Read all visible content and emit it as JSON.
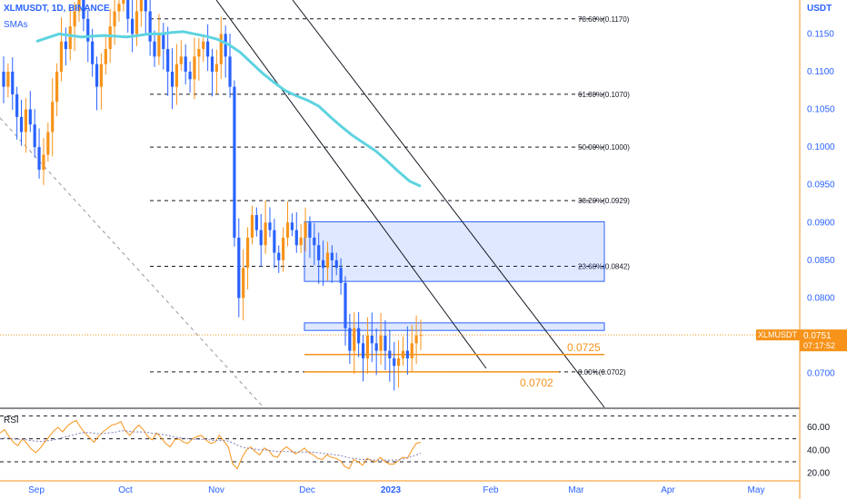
{
  "header": {
    "symbol": "XLMUSDT, 1D, BINANCE",
    "indicator": "SMAs",
    "rsi_label": "RSI",
    "currency": "USDT"
  },
  "colors": {
    "up": "#f7931a",
    "down": "#2962ff",
    "sma": "#5ed3e0",
    "rsi": "#f7931a",
    "rsi_ma": "#7e7bb5",
    "zone_fill": "#2962ff",
    "support": "#f7931a",
    "axis_text": "#2962ff",
    "price_tag": "#f7931a"
  },
  "chart_data": [
    {
      "type": "candlestick",
      "x_ticks": [
        "Sep",
        "Oct",
        "Nov",
        "Dec",
        "2023",
        "Feb",
        "Mar",
        "Apr",
        "May"
      ],
      "y_ticks": [
        0.07,
        0.075,
        0.08,
        0.085,
        0.09,
        0.095,
        0.1,
        0.105,
        0.11,
        0.115
      ],
      "y_tick_labels": [
        "0.0700",
        "0.0750",
        "0.0800",
        "0.0850",
        "0.0900",
        "0.0950",
        "0.1000",
        "0.1050",
        "0.1100",
        "0.1150"
      ],
      "ylim": [
        0.0655,
        0.1195
      ],
      "fib_levels": [
        {
          "label": "78.60%(0.1170)",
          "value": 0.117
        },
        {
          "label": "61.80%(0.1070)",
          "value": 0.107
        },
        {
          "label": "50.00%(0.1000)",
          "value": 0.1
        },
        {
          "label": "38.20%(0.0929)",
          "value": 0.0929
        },
        {
          "label": "23.60%(0.0842)",
          "value": 0.0842
        },
        {
          "label": "0.00%(0.0702)",
          "value": 0.0702
        }
      ],
      "zones": [
        {
          "y_top": 0.0901,
          "y_bottom": 0.0822
        },
        {
          "y_top": 0.0767,
          "y_bottom": 0.0757
        }
      ],
      "support_lines": [
        {
          "value": 0.0725,
          "label": "0.0725"
        },
        {
          "value": 0.0702,
          "label": "0.0702"
        }
      ],
      "last_price": {
        "symbol": "XLMUSDT",
        "value": "0.0751",
        "countdown": "07:17:52"
      },
      "series_close": [
        0.108,
        0.11,
        0.107,
        0.104,
        0.102,
        0.105,
        0.103,
        0.1,
        0.097,
        0.099,
        0.102,
        0.106,
        0.11,
        0.114,
        0.113,
        0.116,
        0.118,
        0.12,
        0.117,
        0.114,
        0.111,
        0.108,
        0.111,
        0.113,
        0.116,
        0.118,
        0.119,
        0.12,
        0.117,
        0.115,
        0.118,
        0.12,
        0.118,
        0.114,
        0.112,
        0.115,
        0.113,
        0.11,
        0.108,
        0.111,
        0.112,
        0.11,
        0.109,
        0.112,
        0.113,
        0.114,
        0.112,
        0.11,
        0.111,
        0.115,
        0.112,
        0.108,
        0.088,
        0.08,
        0.084,
        0.088,
        0.091,
        0.089,
        0.087,
        0.09,
        0.089,
        0.086,
        0.085,
        0.088,
        0.09,
        0.089,
        0.087,
        0.088,
        0.09,
        0.088,
        0.087,
        0.085,
        0.084,
        0.086,
        0.085,
        0.084,
        0.082,
        0.076,
        0.073,
        0.076,
        0.074,
        0.072,
        0.075,
        0.074,
        0.073,
        0.075,
        0.073,
        0.072,
        0.071,
        0.072,
        0.073,
        0.072,
        0.074,
        0.075,
        0.0751
      ],
      "sma": [
        0.114,
        0.1145,
        0.115,
        0.1148,
        0.1146,
        0.1147,
        0.1148,
        0.1147,
        0.1146,
        0.1148,
        0.115,
        0.115,
        0.1152,
        0.1153,
        0.115,
        0.1147,
        0.1143,
        0.1136,
        0.1126,
        0.1112,
        0.1098,
        0.1086,
        0.1075,
        0.1068,
        0.1062,
        0.1054,
        0.104,
        0.1027,
        0.1015,
        0.1005,
        0.0995,
        0.0982,
        0.0968,
        0.0955,
        0.0948
      ],
      "rsi_ticks": [
        20,
        40,
        60
      ],
      "rsi_tick_labels": [
        "20.00",
        "40.00",
        "60.00"
      ],
      "rsi_bands": [
        70,
        50,
        30
      ],
      "rsi_ylim": [
        15,
        75
      ],
      "rsi": [
        55,
        58,
        52,
        47,
        44,
        50,
        46,
        41,
        38,
        42,
        47,
        52,
        57,
        60,
        56,
        61,
        64,
        66,
        60,
        55,
        51,
        47,
        52,
        56,
        59,
        62,
        63,
        65,
        57,
        53,
        58,
        62,
        58,
        52,
        49,
        55,
        51,
        46,
        43,
        49,
        50,
        47,
        46,
        50,
        52,
        53,
        49,
        46,
        47,
        53,
        48,
        43,
        28,
        24,
        33,
        40,
        43,
        39,
        36,
        42,
        40,
        35,
        34,
        40,
        43,
        40,
        37,
        39,
        42,
        38,
        36,
        33,
        32,
        36,
        34,
        33,
        31,
        26,
        24,
        32,
        30,
        27,
        33,
        31,
        30,
        34,
        30,
        28,
        28,
        31,
        34,
        33,
        40,
        46,
        47
      ],
      "rsi_ma": [
        50,
        50.5,
        50.5,
        50,
        49.5,
        49.5,
        49,
        48.5,
        48,
        47.8,
        48,
        48.5,
        49,
        50,
        51,
        52,
        53,
        54,
        55,
        55.5,
        55.5,
        55,
        54.5,
        54.5,
        55,
        55.5,
        56,
        57,
        57,
        56.5,
        56,
        56,
        56,
        55.5,
        55,
        54.5,
        54,
        53.5,
        52.5,
        51.5,
        51,
        50.5,
        50,
        49.5,
        49.5,
        49.5,
        49.5,
        49,
        48.5,
        48.5,
        48.5,
        48,
        46.5,
        44.5,
        43,
        42,
        41.5,
        41,
        40.5,
        40.5,
        40,
        39.5,
        39,
        39,
        39,
        38.8,
        38.5,
        38.5,
        38.5,
        38.5,
        38.3,
        38,
        37.5,
        37,
        36.5,
        36,
        35.5,
        34.5,
        33.5,
        33,
        32.5,
        32,
        32,
        31.5,
        31.5,
        31.5,
        31.5,
        31.5,
        31.5,
        31.8,
        32.5,
        33.5,
        34.5,
        36,
        37.5
      ]
    }
  ]
}
